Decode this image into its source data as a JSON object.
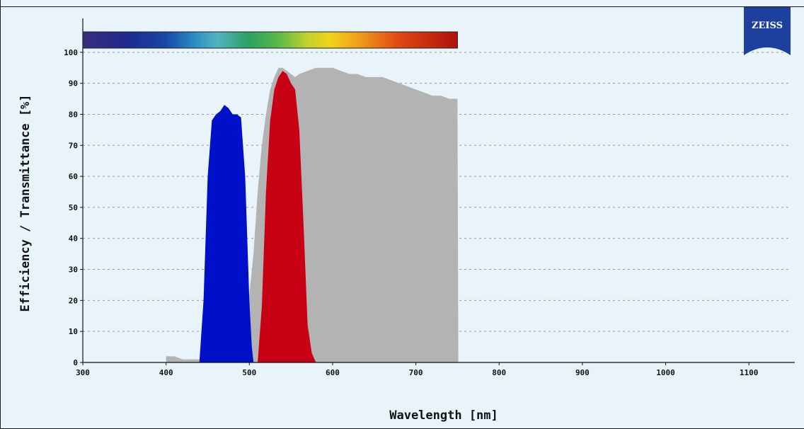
{
  "chart_data": {
    "type": "area",
    "title": "",
    "xlabel": "Wavelength [nm]",
    "ylabel": "Efficiency / Transmittance [%]",
    "xlim": [
      300,
      1150
    ],
    "ylim": [
      0,
      110
    ],
    "x_ticks": [
      300,
      400,
      500,
      600,
      700,
      800,
      900,
      1000,
      1100
    ],
    "y_ticks": [
      0,
      10,
      20,
      30,
      40,
      50,
      60,
      70,
      80,
      90,
      100
    ],
    "grid": "horizontal-dashed",
    "spectrum_bar": {
      "x_range": [
        300,
        750
      ]
    },
    "logo": {
      "text": "ZEISS",
      "color": "#1d3f9e"
    },
    "series": [
      {
        "color": "#b3b3b3",
        "points": [
          [
            400,
            2
          ],
          [
            410,
            2
          ],
          [
            420,
            1
          ],
          [
            430,
            1
          ],
          [
            440,
            1
          ],
          [
            450,
            1
          ],
          [
            460,
            0
          ],
          [
            470,
            0
          ],
          [
            480,
            0
          ],
          [
            485,
            3
          ],
          [
            490,
            8
          ],
          [
            495,
            14
          ],
          [
            500,
            22
          ],
          [
            505,
            35
          ],
          [
            510,
            55
          ],
          [
            515,
            70
          ],
          [
            520,
            80
          ],
          [
            525,
            88
          ],
          [
            530,
            92
          ],
          [
            535,
            95
          ],
          [
            540,
            95
          ],
          [
            545,
            94
          ],
          [
            550,
            93
          ],
          [
            555,
            92
          ],
          [
            560,
            93
          ],
          [
            570,
            94
          ],
          [
            580,
            95
          ],
          [
            590,
            95
          ],
          [
            600,
            95
          ],
          [
            610,
            94
          ],
          [
            620,
            93
          ],
          [
            630,
            93
          ],
          [
            640,
            92
          ],
          [
            650,
            92
          ],
          [
            660,
            92
          ],
          [
            670,
            91
          ],
          [
            680,
            90
          ],
          [
            690,
            89
          ],
          [
            700,
            88
          ],
          [
            710,
            87
          ],
          [
            720,
            86
          ],
          [
            730,
            86
          ],
          [
            740,
            85
          ],
          [
            750,
            85
          ],
          [
            751,
            0
          ]
        ]
      },
      {
        "color": "#0010c8",
        "points": [
          [
            440,
            0
          ],
          [
            445,
            20
          ],
          [
            450,
            60
          ],
          [
            455,
            78
          ],
          [
            460,
            80
          ],
          [
            465,
            81
          ],
          [
            470,
            83
          ],
          [
            475,
            82
          ],
          [
            480,
            80
          ],
          [
            485,
            80
          ],
          [
            490,
            79
          ],
          [
            495,
            60
          ],
          [
            500,
            20
          ],
          [
            503,
            5
          ],
          [
            505,
            0
          ]
        ]
      },
      {
        "color": "#c80014",
        "points": [
          [
            510,
            0
          ],
          [
            515,
            18
          ],
          [
            520,
            55
          ],
          [
            525,
            78
          ],
          [
            530,
            88
          ],
          [
            535,
            92
          ],
          [
            540,
            94
          ],
          [
            545,
            93
          ],
          [
            550,
            90
          ],
          [
            555,
            88
          ],
          [
            560,
            75
          ],
          [
            565,
            45
          ],
          [
            570,
            12
          ],
          [
            575,
            3
          ],
          [
            580,
            0
          ]
        ]
      }
    ]
  }
}
